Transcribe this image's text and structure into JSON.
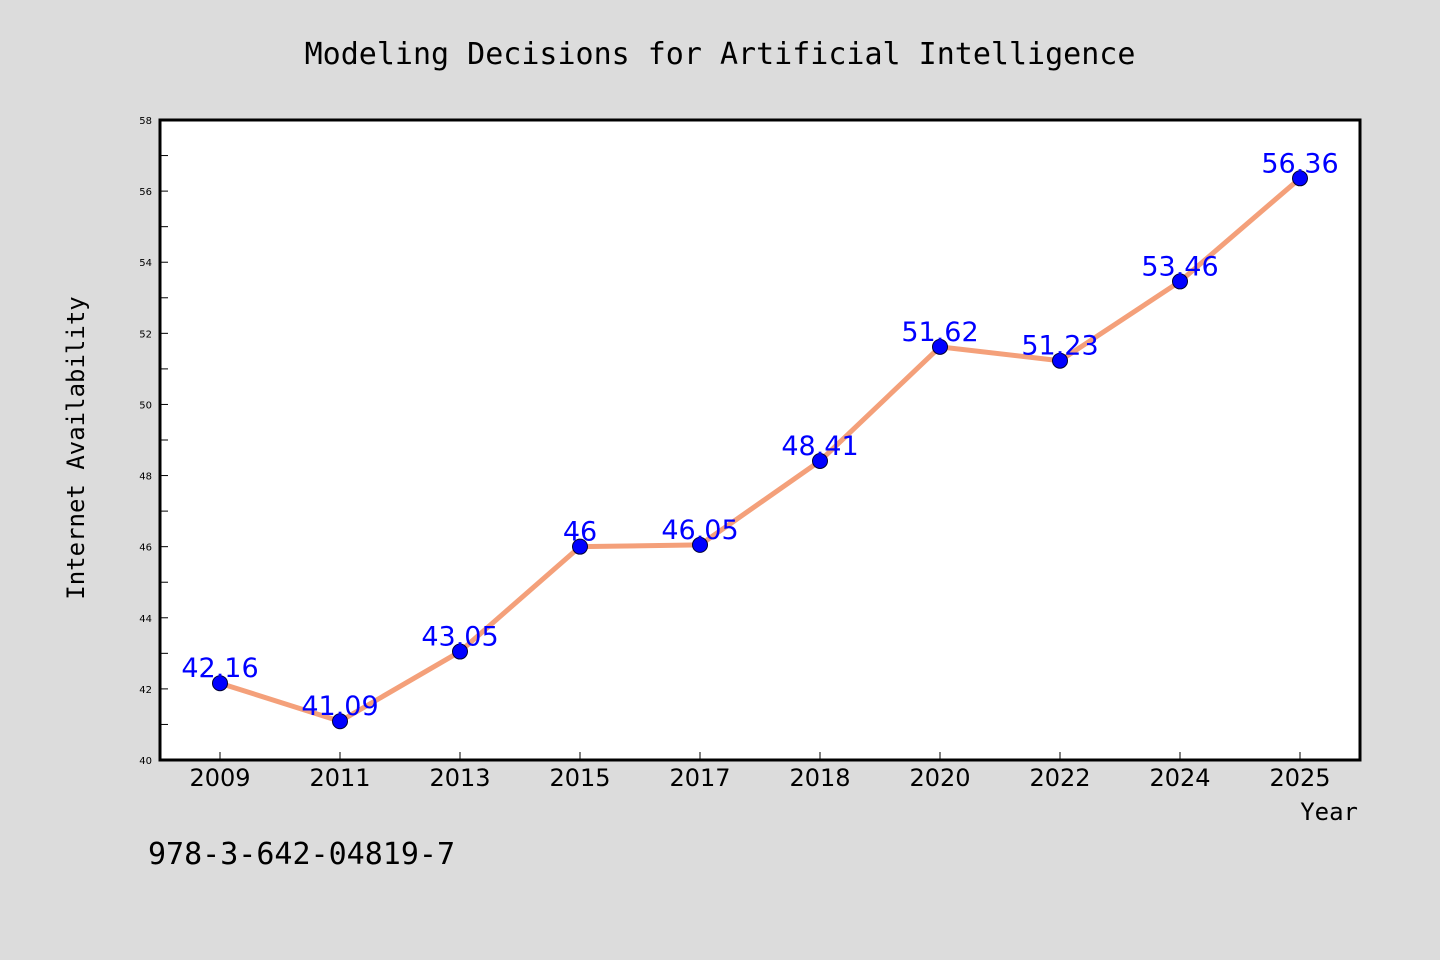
{
  "colors": {
    "background": "#dcdcdc",
    "plot_background": "#ffffff",
    "line": "#f4a07a",
    "marker": "#0000ff",
    "label": "#0000ff"
  },
  "chart_data": {
    "type": "line",
    "title": "Modeling Decisions for Artificial Intelligence",
    "xlabel": "Year",
    "ylabel": "Internet Availability",
    "categories": [
      "2009",
      "2011",
      "2013",
      "2015",
      "2017",
      "2018",
      "2020",
      "2022",
      "2024",
      "2025"
    ],
    "series": [
      {
        "values": [
          42.16,
          41.09,
          43.05,
          46,
          46.05,
          48.41,
          51.62,
          51.23,
          53.46,
          56.36
        ],
        "labels": [
          "42.16",
          "41.09",
          "43.05",
          "46",
          "46.05",
          "48.41",
          "51.62",
          "51.23",
          "53.46",
          "56.36"
        ]
      }
    ],
    "ylim": [
      40,
      58
    ],
    "yticks": [
      40,
      42,
      44,
      46,
      48,
      50,
      52,
      54,
      56,
      58
    ],
    "grid": false,
    "legend": false
  },
  "footnote": "978-3-642-04819-7"
}
